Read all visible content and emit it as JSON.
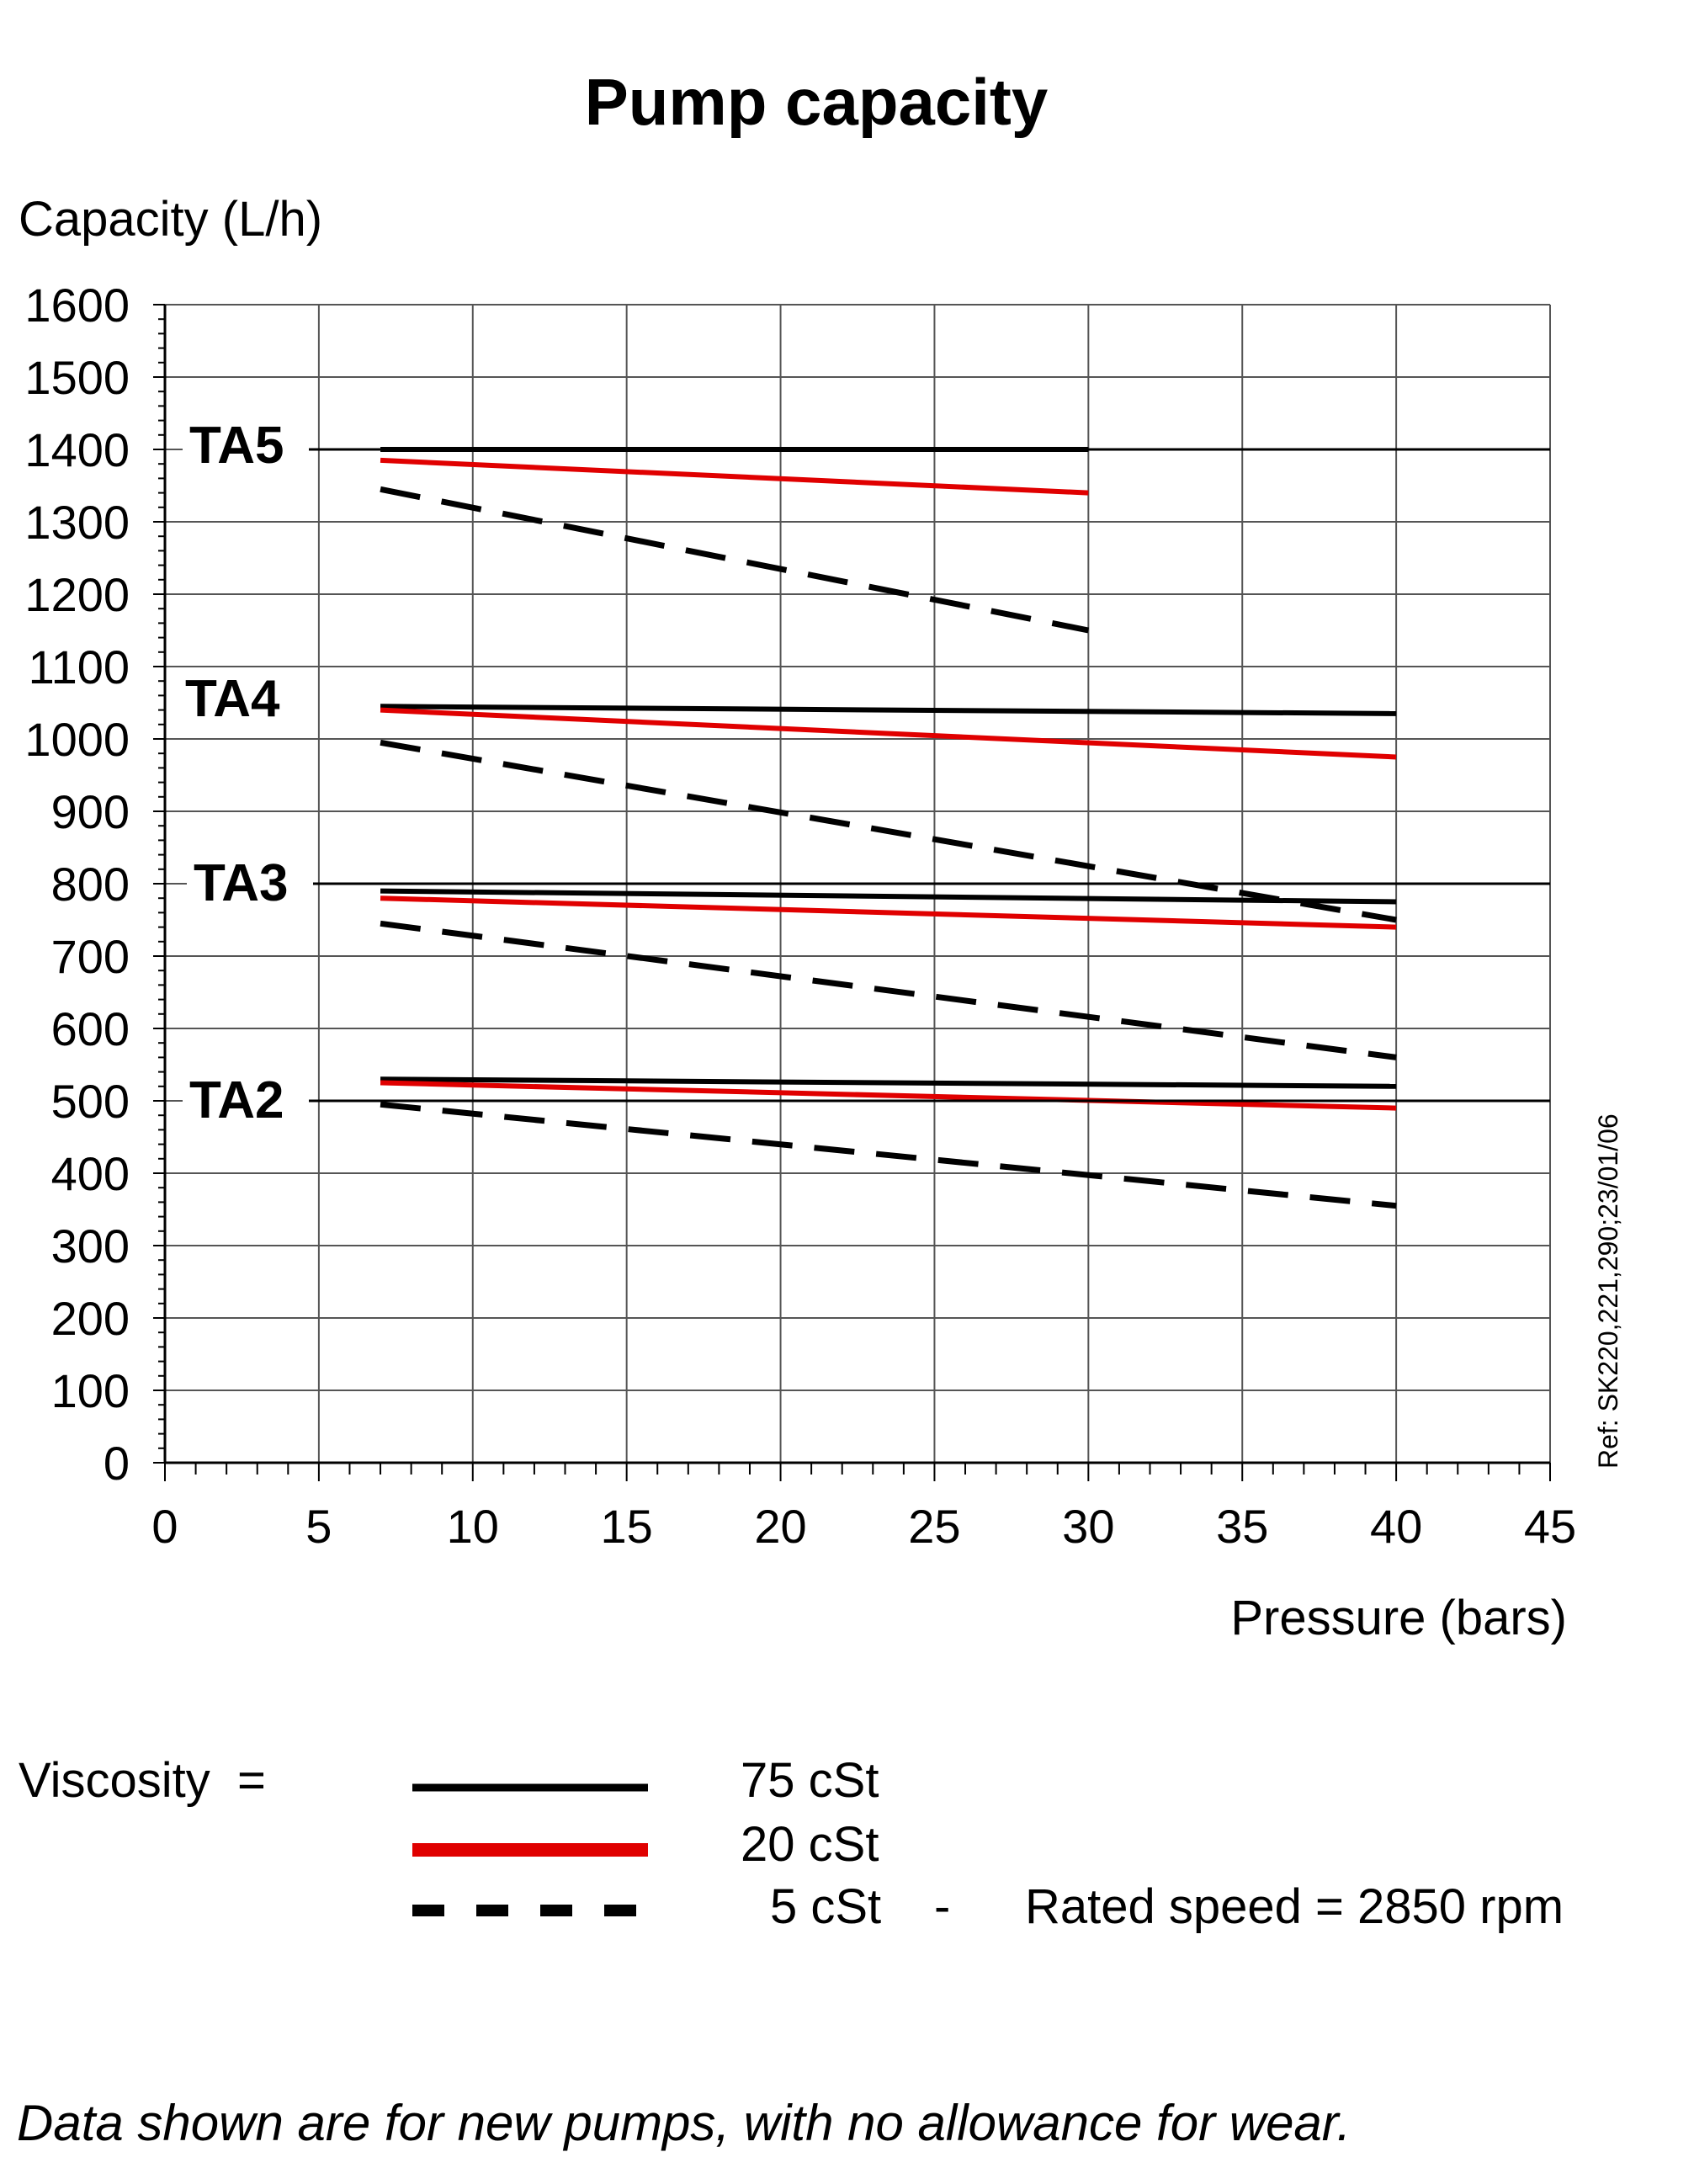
{
  "chart_data": {
    "type": "line",
    "title": "Pump capacity",
    "ylabel": "Capacity (L/h)",
    "xlabel": "Pressure (bars)",
    "xlim": [
      0,
      45
    ],
    "ylim": [
      0,
      1600
    ],
    "xticks": [
      0,
      5,
      10,
      15,
      20,
      25,
      30,
      35,
      40,
      45
    ],
    "yticks": [
      0,
      100,
      200,
      300,
      400,
      500,
      600,
      700,
      800,
      900,
      1000,
      1100,
      1200,
      1300,
      1400,
      1500,
      1600
    ],
    "grid": true,
    "reference": "Ref: SK220,221,290;23/01/06",
    "pump_labels": [
      {
        "name": "TA5",
        "y": 1400
      },
      {
        "name": "TA4",
        "y": 1050
      },
      {
        "name": "TA3",
        "y": 800
      },
      {
        "name": "TA2",
        "y": 500
      }
    ],
    "series": [
      {
        "name": "TA5 75 cSt",
        "pump": "TA5",
        "viscosity": "75 cSt",
        "color": "#000000",
        "dash": false,
        "x": [
          7,
          30
        ],
        "y": [
          1400,
          1400
        ]
      },
      {
        "name": "TA5 20 cSt",
        "pump": "TA5",
        "viscosity": "20 cSt",
        "color": "#e00000",
        "dash": false,
        "x": [
          7,
          30
        ],
        "y": [
          1385,
          1340
        ]
      },
      {
        "name": "TA5 5 cSt",
        "pump": "TA5",
        "viscosity": "5 cSt",
        "color": "#000000",
        "dash": true,
        "x": [
          7,
          30
        ],
        "y": [
          1345,
          1150
        ]
      },
      {
        "name": "TA4 75 cSt",
        "pump": "TA4",
        "viscosity": "75 cSt",
        "color": "#000000",
        "dash": false,
        "x": [
          7,
          40
        ],
        "y": [
          1045,
          1035
        ]
      },
      {
        "name": "TA4 20 cSt",
        "pump": "TA4",
        "viscosity": "20 cSt",
        "color": "#e00000",
        "dash": false,
        "x": [
          7,
          40
        ],
        "y": [
          1040,
          975
        ]
      },
      {
        "name": "TA4 5 cSt",
        "pump": "TA4",
        "viscosity": "5 cSt",
        "color": "#000000",
        "dash": true,
        "x": [
          7,
          40
        ],
        "y": [
          995,
          750
        ]
      },
      {
        "name": "TA3 75 cSt",
        "pump": "TA3",
        "viscosity": "75 cSt",
        "color": "#000000",
        "dash": false,
        "x": [
          7,
          40
        ],
        "y": [
          790,
          775
        ]
      },
      {
        "name": "TA3 20 cSt",
        "pump": "TA3",
        "viscosity": "20 cSt",
        "color": "#e00000",
        "dash": false,
        "x": [
          7,
          40
        ],
        "y": [
          780,
          740
        ]
      },
      {
        "name": "TA3 5 cSt",
        "pump": "TA3",
        "viscosity": "5 cSt",
        "color": "#000000",
        "dash": true,
        "x": [
          7,
          40
        ],
        "y": [
          745,
          560
        ]
      },
      {
        "name": "TA2 75 cSt",
        "pump": "TA2",
        "viscosity": "75 cSt",
        "color": "#000000",
        "dash": false,
        "x": [
          7,
          40
        ],
        "y": [
          530,
          520
        ]
      },
      {
        "name": "TA2 20 cSt",
        "pump": "TA2",
        "viscosity": "20 cSt",
        "color": "#e00000",
        "dash": false,
        "x": [
          7,
          40
        ],
        "y": [
          525,
          490
        ]
      },
      {
        "name": "TA2 5 cSt",
        "pump": "TA2",
        "viscosity": "5 cSt",
        "color": "#000000",
        "dash": true,
        "x": [
          7,
          40
        ],
        "y": [
          495,
          355
        ]
      }
    ]
  },
  "legend": {
    "heading": "Viscosity  =",
    "items": [
      {
        "label": "75 cSt",
        "color": "#000000",
        "dash": false
      },
      {
        "label": "20 cSt",
        "color": "#e00000",
        "dash": false
      },
      {
        "label": "5 cSt",
        "color": "#000000",
        "dash": true
      }
    ],
    "separator": "-",
    "rated_speed": "Rated speed = 2850 rpm"
  },
  "footnote": "Data shown are for new pumps, with no allowance for wear."
}
